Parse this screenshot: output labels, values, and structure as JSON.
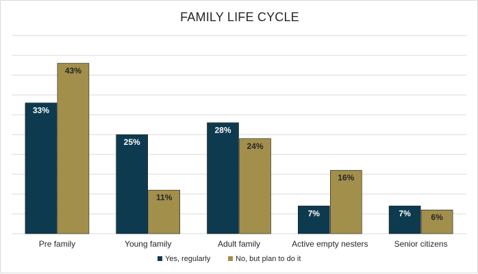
{
  "chart_data": {
    "type": "bar",
    "title": "FAMILY LIFE CYCLE",
    "categories": [
      "Pre family",
      "Young family",
      "Adult family",
      "Active empty nesters",
      "Senior citizens"
    ],
    "series": [
      {
        "name": "Yes, regularly",
        "values": [
          33,
          25,
          28,
          7,
          7
        ],
        "labels": [
          "33%",
          "25%",
          "28%",
          "7%",
          "7%"
        ],
        "color": "#0e3a4f",
        "label_color": "#ffffff"
      },
      {
        "name": "No, but plan to do it",
        "values": [
          43,
          11,
          24,
          16,
          6
        ],
        "labels": [
          "43%",
          "11%",
          "24%",
          "16%",
          "6%"
        ],
        "color": "#a28f4b",
        "label_color": "#262626"
      }
    ],
    "ylim": [
      0,
      50
    ],
    "y_gridlines": [
      0,
      5,
      10,
      15,
      20,
      25,
      30,
      35,
      40,
      45,
      50
    ],
    "grid": true,
    "legend_position": "bottom",
    "gridline_color": "#d9d9d9"
  }
}
